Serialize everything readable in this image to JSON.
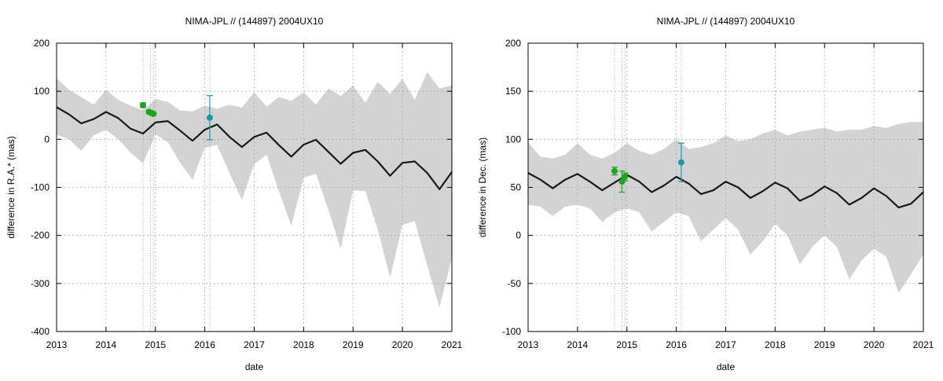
{
  "chart_data": [
    {
      "type": "line",
      "title": "NIMA-JPL // (144897) 2004UX10",
      "xlabel": "date",
      "ylabel": "difference in R.A.* (mas)",
      "xlim": [
        2013,
        2021
      ],
      "ylim": [
        -400,
        200
      ],
      "xticks": [
        2013,
        2014,
        2015,
        2016,
        2017,
        2018,
        2019,
        2020,
        2021
      ],
      "yticks": [
        -400,
        -300,
        -200,
        -100,
        0,
        100,
        200
      ],
      "grid": true,
      "vlines": [
        2014.75,
        2014.9,
        2014.96,
        2016.1
      ],
      "colors": {
        "band": "#d3d3d3",
        "line": "#1a1a1a",
        "green": "#1aa51a",
        "teal": "#1a9aa8",
        "grid": "#aaaaaa"
      },
      "series": [
        {
          "kind": "central_line",
          "x": [
            2013.0,
            2013.25,
            2013.5,
            2013.75,
            2014.0,
            2014.25,
            2014.5,
            2014.75,
            2015.0,
            2015.25,
            2015.5,
            2015.75,
            2016.0,
            2016.25,
            2016.5,
            2016.75,
            2017.0,
            2017.25,
            2017.5,
            2017.75,
            2018.0,
            2018.25,
            2018.5,
            2018.75,
            2019.0,
            2019.25,
            2019.5,
            2019.75,
            2020.0,
            2020.25,
            2020.5,
            2020.75,
            2021.0
          ],
          "y": [
            67,
            52,
            33,
            42,
            57,
            44,
            22,
            12,
            35,
            38,
            18,
            -3,
            20,
            31,
            5,
            -16,
            5,
            14,
            -12,
            -36,
            -11,
            -1,
            -26,
            -51,
            -28,
            -22,
            -46,
            -76,
            -49,
            -46,
            -70,
            -104,
            -68
          ]
        },
        {
          "kind": "uncertainty_band",
          "x": [
            2013.0,
            2013.25,
            2013.5,
            2013.75,
            2014.0,
            2014.25,
            2014.5,
            2014.75,
            2015.0,
            2015.25,
            2015.5,
            2015.75,
            2016.0,
            2016.25,
            2016.5,
            2016.75,
            2017.0,
            2017.25,
            2017.5,
            2017.75,
            2018.0,
            2018.25,
            2018.5,
            2018.75,
            2019.0,
            2019.25,
            2019.5,
            2019.75,
            2020.0,
            2020.25,
            2020.5,
            2020.75,
            2021.0
          ],
          "upper": [
            127,
            103,
            88,
            72,
            103,
            82,
            70,
            60,
            84,
            78,
            60,
            58,
            70,
            64,
            72,
            66,
            98,
            68,
            88,
            80,
            98,
            72,
            106,
            90,
            112,
            76,
            120,
            94,
            126,
            82,
            140,
            106,
            112
          ],
          "lower": [
            10,
            0,
            -24,
            8,
            20,
            0,
            -28,
            -50,
            10,
            -6,
            -48,
            -84,
            -18,
            -12,
            -70,
            -126,
            -52,
            -32,
            -108,
            -180,
            -80,
            -72,
            -146,
            -228,
            -106,
            -108,
            -188,
            -288,
            -178,
            -170,
            -262,
            -350,
            -248
          ]
        }
      ],
      "points": [
        {
          "x": 2014.75,
          "y": 71,
          "yerr": 5,
          "color": "green"
        },
        {
          "x": 2014.87,
          "y": 57,
          "yerr": 3,
          "color": "green"
        },
        {
          "x": 2014.92,
          "y": 55,
          "yerr": 3,
          "color": "green"
        },
        {
          "x": 2014.96,
          "y": 53,
          "yerr": 3,
          "color": "green"
        },
        {
          "x": 2016.1,
          "y": 45,
          "yerr": 46,
          "color": "teal"
        }
      ]
    },
    {
      "type": "line",
      "title": "NIMA-JPL // (144897) 2004UX10",
      "xlabel": "date",
      "ylabel": "difference in Dec. (mas)",
      "xlim": [
        2013,
        2021
      ],
      "ylim": [
        -100,
        200
      ],
      "xticks": [
        2013,
        2014,
        2015,
        2016,
        2017,
        2018,
        2019,
        2020,
        2021
      ],
      "yticks": [
        -100,
        -50,
        0,
        50,
        100,
        150,
        200
      ],
      "grid": true,
      "vlines": [
        2014.75,
        2014.9,
        2014.96,
        2016.1
      ],
      "colors": {
        "band": "#d3d3d3",
        "line": "#1a1a1a",
        "green": "#1aa51a",
        "teal": "#1a9aa8",
        "grid": "#aaaaaa"
      },
      "series": [
        {
          "kind": "central_line",
          "x": [
            2013.0,
            2013.25,
            2013.5,
            2013.75,
            2014.0,
            2014.25,
            2014.5,
            2014.75,
            2015.0,
            2015.25,
            2015.5,
            2015.75,
            2016.0,
            2016.25,
            2016.5,
            2016.75,
            2017.0,
            2017.25,
            2017.5,
            2017.75,
            2018.0,
            2018.25,
            2018.5,
            2018.75,
            2019.0,
            2019.25,
            2019.5,
            2019.75,
            2020.0,
            2020.25,
            2020.5,
            2020.75,
            2021.0
          ],
          "y": [
            65,
            58,
            49,
            58,
            64,
            56,
            47,
            55,
            63,
            56,
            45,
            52,
            61,
            54,
            43,
            47,
            56,
            50,
            39,
            46,
            55,
            49,
            36,
            42,
            51,
            44,
            32,
            39,
            49,
            41,
            29,
            33,
            45
          ]
        },
        {
          "kind": "uncertainty_band",
          "x": [
            2013.0,
            2013.25,
            2013.5,
            2013.75,
            2014.0,
            2014.25,
            2014.5,
            2014.75,
            2015.0,
            2015.25,
            2015.5,
            2015.75,
            2016.0,
            2016.25,
            2016.5,
            2016.75,
            2017.0,
            2017.25,
            2017.5,
            2017.75,
            2018.0,
            2018.25,
            2018.5,
            2018.75,
            2019.0,
            2019.25,
            2019.5,
            2019.75,
            2020.0,
            2020.25,
            2020.5,
            2020.75,
            2021.0
          ],
          "upper": [
            97,
            82,
            80,
            84,
            96,
            84,
            80,
            86,
            96,
            88,
            84,
            90,
            100,
            90,
            92,
            96,
            104,
            98,
            100,
            106,
            110,
            104,
            108,
            110,
            112,
            108,
            110,
            110,
            114,
            112,
            116,
            118,
            118
          ],
          "lower": [
            32,
            30,
            20,
            30,
            32,
            28,
            14,
            24,
            28,
            24,
            4,
            14,
            24,
            20,
            -6,
            6,
            18,
            6,
            -20,
            -6,
            12,
            0,
            -30,
            -12,
            0,
            -12,
            -46,
            -26,
            -14,
            -22,
            -60,
            -40,
            -20
          ]
        }
      ],
      "points": [
        {
          "x": 2014.75,
          "y": 67,
          "yerr": 4,
          "color": "green"
        },
        {
          "x": 2014.9,
          "y": 56,
          "yerr": 11,
          "color": "green"
        },
        {
          "x": 2014.96,
          "y": 61,
          "yerr": 4,
          "color": "green"
        },
        {
          "x": 2016.1,
          "y": 76,
          "yerr": 20,
          "color": "teal"
        }
      ]
    }
  ]
}
